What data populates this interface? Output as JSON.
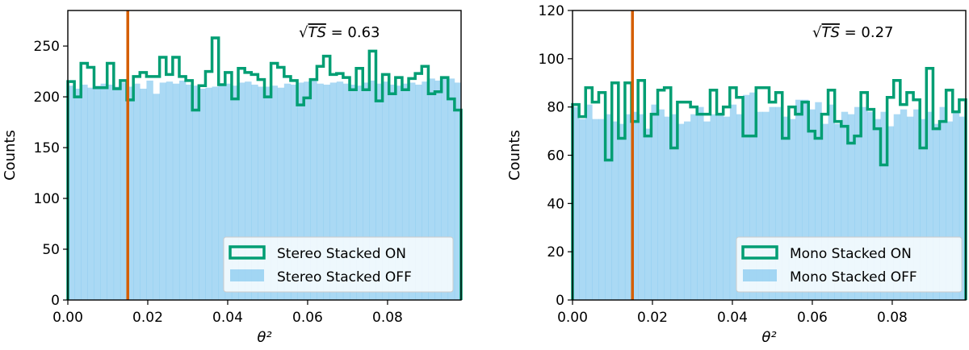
{
  "colors": {
    "on": "#009E73",
    "off": "#56B4E9",
    "marker_line": "#D55E00"
  },
  "chart_data": [
    {
      "type": "histogram",
      "xlabel": "θ²",
      "ylabel": "Counts",
      "xlim": [
        0,
        0.0984
      ],
      "ylim": [
        0,
        285
      ],
      "xticks": [
        "0.00",
        "0.02",
        "0.04",
        "0.06",
        "0.08"
      ],
      "yticks": [
        "0",
        "50",
        "100",
        "150",
        "200",
        "250"
      ],
      "bin_range": [
        0,
        0.0984
      ],
      "vertical_line_x": 0.015,
      "annotation": {
        "prefix": "√",
        "var": "TS",
        "suffix": " = 0.63"
      },
      "legend_placement": "lower right",
      "series": [
        {
          "name": "Stereo Stacked ON",
          "style": "step",
          "values": [
            215,
            200,
            233,
            229,
            209,
            209,
            233,
            208,
            216,
            197,
            220,
            224,
            220,
            220,
            239,
            222,
            239,
            220,
            216,
            187,
            211,
            225,
            258,
            212,
            224,
            198,
            228,
            224,
            222,
            217,
            200,
            233,
            229,
            220,
            216,
            192,
            199,
            217,
            230,
            240,
            222,
            223,
            219,
            207,
            228,
            207,
            245,
            196,
            222,
            203,
            219,
            207,
            218,
            223,
            230,
            203,
            205,
            219,
            198,
            187
          ]
        },
        {
          "name": "Stereo Stacked OFF",
          "style": "filled",
          "values": [
            211,
            208,
            212,
            209,
            211,
            213,
            212,
            210,
            214,
            210,
            213,
            208,
            216,
            203,
            214,
            215,
            213,
            216,
            212,
            211,
            208,
            209,
            210,
            212,
            213,
            211,
            214,
            215,
            212,
            210,
            210,
            211,
            209,
            213,
            212,
            214,
            215,
            216,
            213,
            212,
            214,
            215,
            213,
            212,
            211,
            214,
            216,
            213,
            215,
            212,
            211,
            213,
            214,
            212,
            215,
            218,
            216,
            219,
            218,
            214
          ]
        }
      ]
    },
    {
      "type": "histogram",
      "xlabel": "θ²",
      "ylabel": "Counts",
      "xlim": [
        0,
        0.0984
      ],
      "ylim": [
        0,
        120
      ],
      "xticks": [
        "0.00",
        "0.02",
        "0.04",
        "0.06",
        "0.08"
      ],
      "yticks": [
        "0",
        "20",
        "40",
        "60",
        "80",
        "100",
        "120"
      ],
      "bin_range": [
        0,
        0.0984
      ],
      "vertical_line_x": 0.015,
      "annotation": {
        "prefix": "√",
        "var": "TS",
        "suffix": " = 0.27"
      },
      "legend_placement": "lower right",
      "series": [
        {
          "name": "Mono Stacked ON",
          "style": "step",
          "values": [
            81,
            76,
            88,
            82,
            86,
            58,
            90,
            67,
            90,
            74,
            91,
            68,
            77,
            87,
            88,
            63,
            82,
            82,
            80,
            77,
            77,
            87,
            77,
            80,
            88,
            84,
            68,
            68,
            88,
            88,
            82,
            86,
            67,
            80,
            77,
            82,
            70,
            67,
            77,
            87,
            74,
            72,
            65,
            68,
            86,
            79,
            71,
            56,
            84,
            91,
            81,
            86,
            83,
            63,
            96,
            71,
            74,
            87,
            78,
            83
          ]
        },
        {
          "name": "Mono Stacked OFF",
          "style": "filled",
          "values": [
            80,
            75,
            81,
            75,
            75,
            77,
            74,
            73,
            77,
            78,
            77,
            71,
            81,
            79,
            76,
            77,
            73,
            74,
            77,
            80,
            74,
            77,
            77,
            76,
            81,
            77,
            85,
            86,
            78,
            78,
            80,
            80,
            76,
            75,
            83,
            83,
            79,
            82,
            73,
            81,
            73,
            78,
            77,
            80,
            80,
            78,
            75,
            78,
            72,
            77,
            79,
            76,
            79,
            75,
            78,
            73,
            80,
            74,
            78,
            76
          ]
        }
      ]
    }
  ]
}
